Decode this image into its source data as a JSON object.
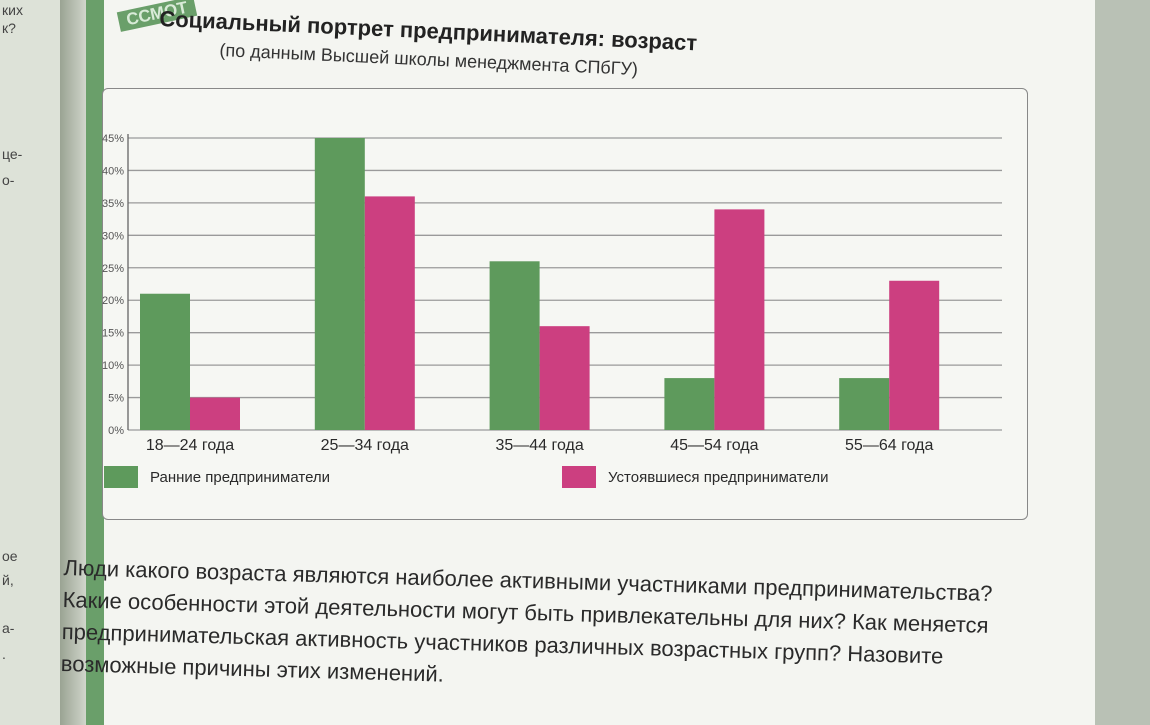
{
  "header": {
    "tab_label": "ССМОТ",
    "title": "Социальный портрет предпринимателя: возраст",
    "subtitle": "(по данным Высшей школы менеджмента СПбГУ)"
  },
  "left_page_snippets": [
    "ких",
    "к?",
    "це-",
    "о-",
    "ое",
    "й,",
    "а-",
    "."
  ],
  "question": "Люди какого возраста являются наиболее активными участниками предпринимательства? Какие особенности этой деятельности могут быть привлекательны для них? Как меняется предпринимательская активность участников различных возрастных групп? Назовите возможные причины этих изменений.",
  "colors": {
    "early": "#5e9a5c",
    "established": "#cc3f80",
    "grid": "#9a9a9a",
    "text": "#2a2a2a"
  },
  "chart_data": {
    "type": "bar",
    "categories": [
      "18—24 года",
      "25—34 года",
      "35—44 года",
      "45—54 года",
      "55—64 года"
    ],
    "series": [
      {
        "name": "Ранние предприниматели",
        "values": [
          21,
          45,
          26,
          8,
          8
        ]
      },
      {
        "name": "Устоявшиеся предприниматели",
        "values": [
          5,
          36,
          16,
          34,
          23
        ]
      }
    ],
    "y_ticks": [
      "0%",
      "5%",
      "10%",
      "15%",
      "20%",
      "25%",
      "30%",
      "35%",
      "40%",
      "45%"
    ],
    "ylim": [
      0,
      45
    ],
    "grid": true,
    "legend_position": "bottom",
    "title": "Социальный портрет предпринимателя: возраст",
    "subtitle": "(по данным Высшей школы менеджмента СПбГУ)"
  }
}
